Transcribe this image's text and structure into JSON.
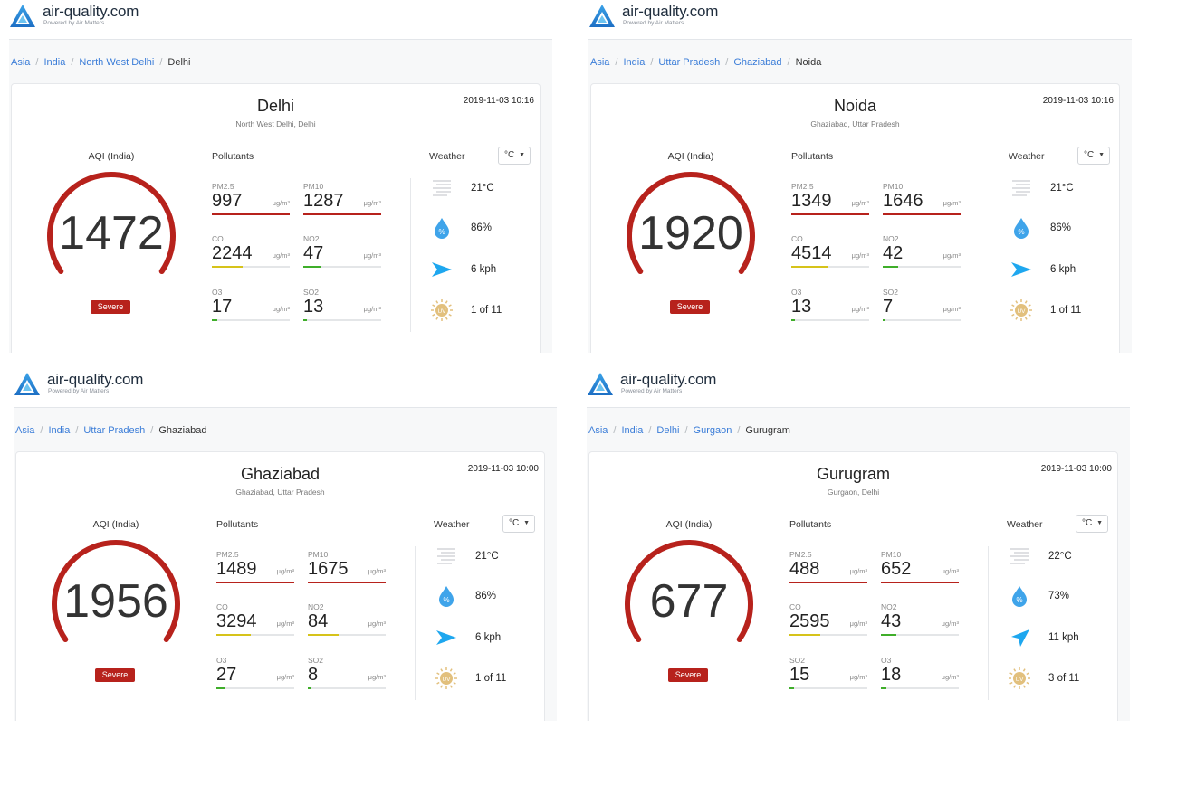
{
  "brand": {
    "name": "air-quality.com",
    "tagline": "Powered by Air Matters"
  },
  "labels": {
    "aqi": "AQI (India)",
    "pollutants": "Pollutants",
    "weather": "Weather",
    "unit_select": "°C",
    "severity": "Severe"
  },
  "colors": {
    "severe": "#b7221c",
    "link": "#3b7dd8",
    "moderate": "#d6c31a",
    "good": "#3fae2a"
  },
  "panels": [
    {
      "breadcrumb": [
        "Asia",
        "India",
        "North West Delhi"
      ],
      "current": "Delhi",
      "city": "Delhi",
      "region": "North West Delhi, Delhi",
      "time": "2019-11-03 10:16",
      "aqi": "1472",
      "pollutants": [
        {
          "name": "PM2.5",
          "value": "997",
          "unit": "μg/m³",
          "level": 1.0,
          "color": "#b7221c"
        },
        {
          "name": "PM10",
          "value": "1287",
          "unit": "μg/m³",
          "level": 1.0,
          "color": "#b7221c"
        },
        {
          "name": "CO",
          "value": "2244",
          "unit": "μg/m³",
          "level": 0.4,
          "color": "#d6c31a"
        },
        {
          "name": "NO2",
          "value": "47",
          "unit": "μg/m³",
          "level": 0.22,
          "color": "#3fae2a"
        },
        {
          "name": "O3",
          "value": "17",
          "unit": "μg/m³",
          "level": 0.07,
          "color": "#3fae2a"
        },
        {
          "name": "SO2",
          "value": "13",
          "unit": "μg/m³",
          "level": 0.05,
          "color": "#3fae2a"
        }
      ],
      "weather": {
        "temp": "21°C",
        "humidity": "86%",
        "wind": "6 kph",
        "uv": "1 of 11",
        "wind_dir": "east"
      }
    },
    {
      "breadcrumb": [
        "Asia",
        "India",
        "Uttar Pradesh",
        "Ghaziabad"
      ],
      "current": "Noida",
      "city": "Noida",
      "region": "Ghaziabad, Uttar Pradesh",
      "time": "2019-11-03 10:16",
      "aqi": "1920",
      "pollutants": [
        {
          "name": "PM2.5",
          "value": "1349",
          "unit": "μg/m³",
          "level": 1.0,
          "color": "#b7221c"
        },
        {
          "name": "PM10",
          "value": "1646",
          "unit": "μg/m³",
          "level": 1.0,
          "color": "#b7221c"
        },
        {
          "name": "CO",
          "value": "4514",
          "unit": "μg/m³",
          "level": 0.48,
          "color": "#d6c31a"
        },
        {
          "name": "NO2",
          "value": "42",
          "unit": "μg/m³",
          "level": 0.2,
          "color": "#3fae2a"
        },
        {
          "name": "O3",
          "value": "13",
          "unit": "μg/m³",
          "level": 0.05,
          "color": "#3fae2a"
        },
        {
          "name": "SO2",
          "value": "7",
          "unit": "μg/m³",
          "level": 0.04,
          "color": "#3fae2a"
        }
      ],
      "weather": {
        "temp": "21°C",
        "humidity": "86%",
        "wind": "6 kph",
        "uv": "1 of 11",
        "wind_dir": "east"
      }
    },
    {
      "breadcrumb": [
        "Asia",
        "India",
        "Uttar Pradesh"
      ],
      "current": "Ghaziabad",
      "city": "Ghaziabad",
      "region": "Ghaziabad, Uttar Pradesh",
      "time": "2019-11-03 10:00",
      "aqi": "1956",
      "pollutants": [
        {
          "name": "PM2.5",
          "value": "1489",
          "unit": "μg/m³",
          "level": 1.0,
          "color": "#b7221c"
        },
        {
          "name": "PM10",
          "value": "1675",
          "unit": "μg/m³",
          "level": 1.0,
          "color": "#b7221c"
        },
        {
          "name": "CO",
          "value": "3294",
          "unit": "μg/m³",
          "level": 0.44,
          "color": "#d6c31a"
        },
        {
          "name": "NO2",
          "value": "84",
          "unit": "μg/m³",
          "level": 0.4,
          "color": "#d6c31a"
        },
        {
          "name": "O3",
          "value": "27",
          "unit": "μg/m³",
          "level": 0.1,
          "color": "#3fae2a"
        },
        {
          "name": "SO2",
          "value": "8",
          "unit": "μg/m³",
          "level": 0.04,
          "color": "#3fae2a"
        }
      ],
      "weather": {
        "temp": "21°C",
        "humidity": "86%",
        "wind": "6 kph",
        "uv": "1 of 11",
        "wind_dir": "east"
      }
    },
    {
      "breadcrumb": [
        "Asia",
        "India",
        "Delhi",
        "Gurgaon"
      ],
      "current": "Gurugram",
      "city": "Gurugram",
      "region": "Gurgaon, Delhi",
      "time": "2019-11-03 10:00",
      "aqi": "677",
      "pollutants": [
        {
          "name": "PM2.5",
          "value": "488",
          "unit": "μg/m³",
          "level": 1.0,
          "color": "#b7221c"
        },
        {
          "name": "PM10",
          "value": "652",
          "unit": "μg/m³",
          "level": 1.0,
          "color": "#b7221c"
        },
        {
          "name": "CO",
          "value": "2595",
          "unit": "μg/m³",
          "level": 0.4,
          "color": "#d6c31a"
        },
        {
          "name": "NO2",
          "value": "43",
          "unit": "μg/m³",
          "level": 0.2,
          "color": "#3fae2a"
        },
        {
          "name": "SO2",
          "value": "15",
          "unit": "μg/m³",
          "level": 0.06,
          "color": "#3fae2a"
        },
        {
          "name": "O3",
          "value": "18",
          "unit": "μg/m³",
          "level": 0.07,
          "color": "#3fae2a"
        }
      ],
      "weather": {
        "temp": "22°C",
        "humidity": "73%",
        "wind": "11 kph",
        "uv": "3 of 11",
        "wind_dir": "northeast"
      }
    }
  ]
}
